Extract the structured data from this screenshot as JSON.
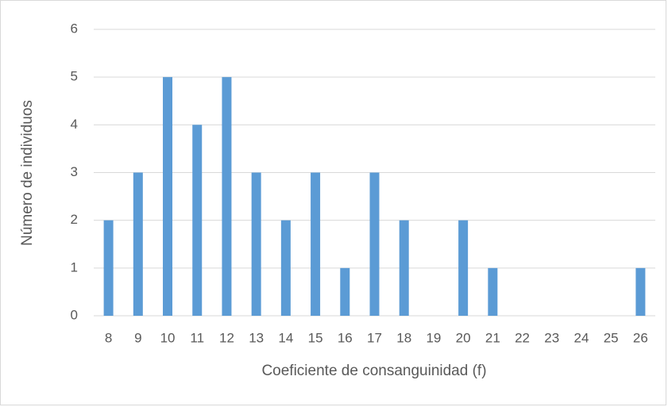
{
  "chart_data": {
    "type": "bar",
    "x_label": "Coeficiente de consanguinidad (f)",
    "y_label": "Número de individuos",
    "categories": [
      "8",
      "9",
      "10",
      "11",
      "12",
      "13",
      "14",
      "15",
      "16",
      "17",
      "18",
      "19",
      "20",
      "21",
      "22",
      "23",
      "24",
      "25",
      "26"
    ],
    "values": [
      2,
      3,
      5,
      4,
      5,
      3,
      2,
      3,
      1,
      3,
      2,
      0,
      2,
      1,
      0,
      0,
      0,
      0,
      1
    ],
    "color": "#5b9bd5",
    "ylim": [
      0,
      6
    ],
    "yticks": [
      0,
      1,
      2,
      3,
      4,
      5,
      6
    ],
    "grid": true
  }
}
